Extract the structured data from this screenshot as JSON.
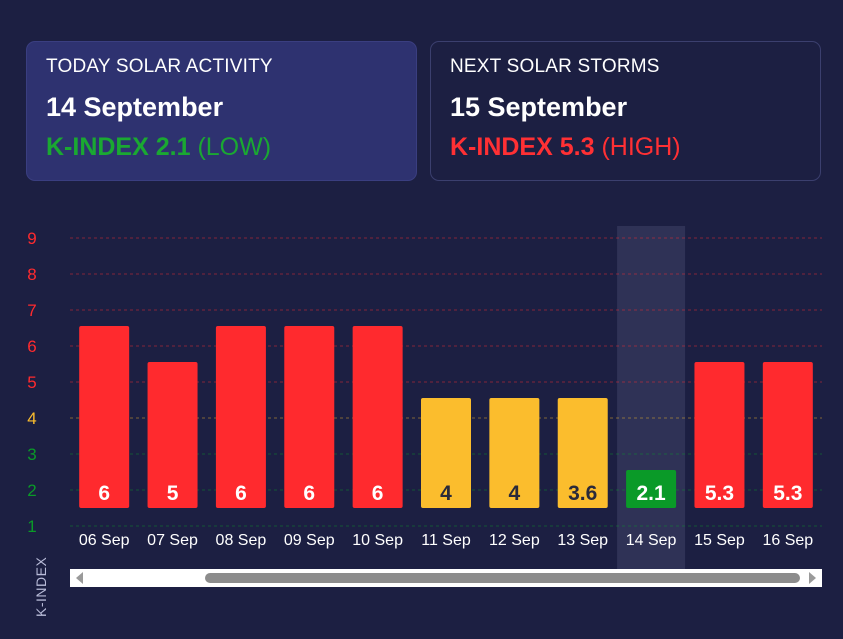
{
  "today": {
    "label": "TODAY SOLAR ACTIVITY",
    "date": "14 September",
    "kindex_label": "K-INDEX 2.1",
    "level": "(LOW)",
    "color": "#1aa832"
  },
  "next": {
    "label": "NEXT SOLAR STORMS",
    "date": "15 September",
    "kindex_label": "K-INDEX 5.3",
    "level": "(HIGH)",
    "color": "#ff3034"
  },
  "colors": {
    "high": "#ff2a2e",
    "medium": "#fbbd2d",
    "low": "#0a9a28",
    "background": "#1c1f42",
    "highlight_band": "#2f3256"
  },
  "chart_data": {
    "type": "bar",
    "ylabel": "K-INDEX",
    "ylim": [
      1,
      9
    ],
    "yticks": [
      "1",
      "2",
      "3",
      "4",
      "5",
      "6",
      "7",
      "8",
      "9"
    ],
    "categories": [
      "06 Sep",
      "07 Sep",
      "08 Sep",
      "09 Sep",
      "10 Sep",
      "11 Sep",
      "12 Sep",
      "13 Sep",
      "14 Sep",
      "15 Sep",
      "16 Sep"
    ],
    "values": [
      6,
      5,
      6,
      6,
      6,
      4,
      4,
      3.6,
      2.1,
      5.3,
      5.3
    ],
    "bar_heights": [
      6.5,
      5.5,
      6.5,
      6.5,
      6.5,
      4.5,
      4.5,
      4.5,
      2.5,
      5.5,
      5.5
    ],
    "value_labels": [
      "6",
      "5",
      "6",
      "6",
      "6",
      "4",
      "4",
      "3.6",
      "2.1",
      "5.3",
      "5.3"
    ],
    "levels": [
      "high",
      "high",
      "high",
      "high",
      "high",
      "medium",
      "medium",
      "medium",
      "low",
      "high",
      "high"
    ],
    "highlighted_category": "14 Sep",
    "grid": true,
    "legend": "none"
  }
}
